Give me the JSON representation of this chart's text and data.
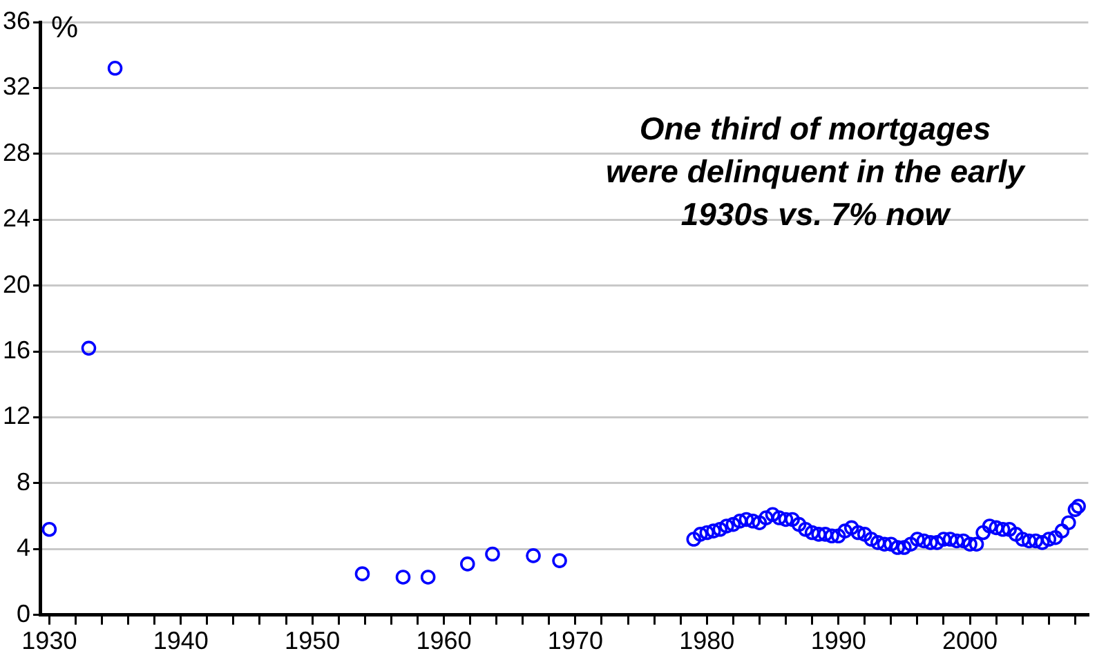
{
  "chart_data": {
    "type": "scatter",
    "ylabel": "%",
    "annotations": [
      "One third of mortgages were delinquent in the early 1930s vs. 7% now"
    ],
    "xlim": [
      1929.3,
      2009
    ],
    "xticks": [
      1930,
      {
        "value": 1932,
        "label": null
      },
      {
        "value": 1934,
        "label": null
      },
      {
        "value": 1936,
        "label": null
      },
      {
        "value": 1938,
        "label": null
      },
      1940,
      {
        "value": 1942,
        "label": null
      },
      {
        "value": 1944,
        "label": null
      },
      {
        "value": 1946,
        "label": null
      },
      {
        "value": 1948,
        "label": null
      },
      1950,
      {
        "value": 1952,
        "label": null
      },
      {
        "value": 1954,
        "label": null
      },
      {
        "value": 1956,
        "label": null
      },
      {
        "value": 1958,
        "label": null
      },
      1960,
      {
        "value": 1962,
        "label": null
      },
      {
        "value": 1964,
        "label": null
      },
      {
        "value": 1966,
        "label": null
      },
      {
        "value": 1968,
        "label": null
      },
      1970,
      {
        "value": 1972,
        "label": null
      },
      {
        "value": 1974,
        "label": null
      },
      {
        "value": 1976,
        "label": null
      },
      {
        "value": 1978,
        "label": null
      },
      1980,
      {
        "value": 1982,
        "label": null
      },
      {
        "value": 1984,
        "label": null
      },
      {
        "value": 1986,
        "label": null
      },
      {
        "value": 1988,
        "label": null
      },
      1990,
      {
        "value": 1992,
        "label": null
      },
      {
        "value": 1994,
        "label": null
      },
      {
        "value": 1996,
        "label": null
      },
      {
        "value": 1998,
        "label": null
      },
      2000,
      {
        "value": 2002,
        "label": null
      },
      {
        "value": 2004,
        "label": null
      },
      {
        "value": 2006,
        "label": null
      },
      {
        "value": 2008,
        "label": null
      }
    ],
    "ylim": [
      0,
      36
    ],
    "yticks": [
      0,
      4,
      8,
      12,
      16,
      20,
      24,
      28,
      32,
      36
    ],
    "grid": "y",
    "legend": false,
    "marker": "circle",
    "series": [
      {
        "color": "#0000ff",
        "x": [
          1930,
          1933,
          1935,
          1953.8,
          1956.9,
          1958.8,
          1961.8,
          1963.7,
          1966.8,
          1968.8,
          1979,
          1979.5,
          1980,
          1980.5,
          1981,
          1981.5,
          1982,
          1982.5,
          1983,
          1983.5,
          1984,
          1984.5,
          1985,
          1985.5,
          1986,
          1986.5,
          1987,
          1987.5,
          1988,
          1988.5,
          1989,
          1989.5,
          1990,
          1990.5,
          1991,
          1991.5,
          1992,
          1992.5,
          1993,
          1993.5,
          1994,
          1994.5,
          1995,
          1995.5,
          1996,
          1996.5,
          1997,
          1997.5,
          1998,
          1998.5,
          1999,
          1999.5,
          2000,
          2000.5,
          2001,
          2001.5,
          2002,
          2002.5,
          2003,
          2003.5,
          2004,
          2004.5,
          2005,
          2005.5,
          2006,
          2006.5,
          2007,
          2007.5,
          2008,
          2008.25
        ],
        "values": [
          5.2,
          16.2,
          33.2,
          2.5,
          2.3,
          2.3,
          3.1,
          3.7,
          3.6,
          3.3,
          4.6,
          4.9,
          5.0,
          5.1,
          5.2,
          5.4,
          5.5,
          5.7,
          5.8,
          5.7,
          5.6,
          5.9,
          6.1,
          5.9,
          5.8,
          5.8,
          5.5,
          5.2,
          5.0,
          4.9,
          4.9,
          4.8,
          4.8,
          5.1,
          5.3,
          5.0,
          4.9,
          4.6,
          4.4,
          4.3,
          4.3,
          4.1,
          4.1,
          4.3,
          4.6,
          4.5,
          4.4,
          4.4,
          4.6,
          4.6,
          4.5,
          4.5,
          4.3,
          4.3,
          5.0,
          5.4,
          5.3,
          5.2,
          5.2,
          4.9,
          4.6,
          4.5,
          4.5,
          4.4,
          4.6,
          4.7,
          5.1,
          5.6,
          6.4,
          6.6
        ]
      }
    ]
  }
}
